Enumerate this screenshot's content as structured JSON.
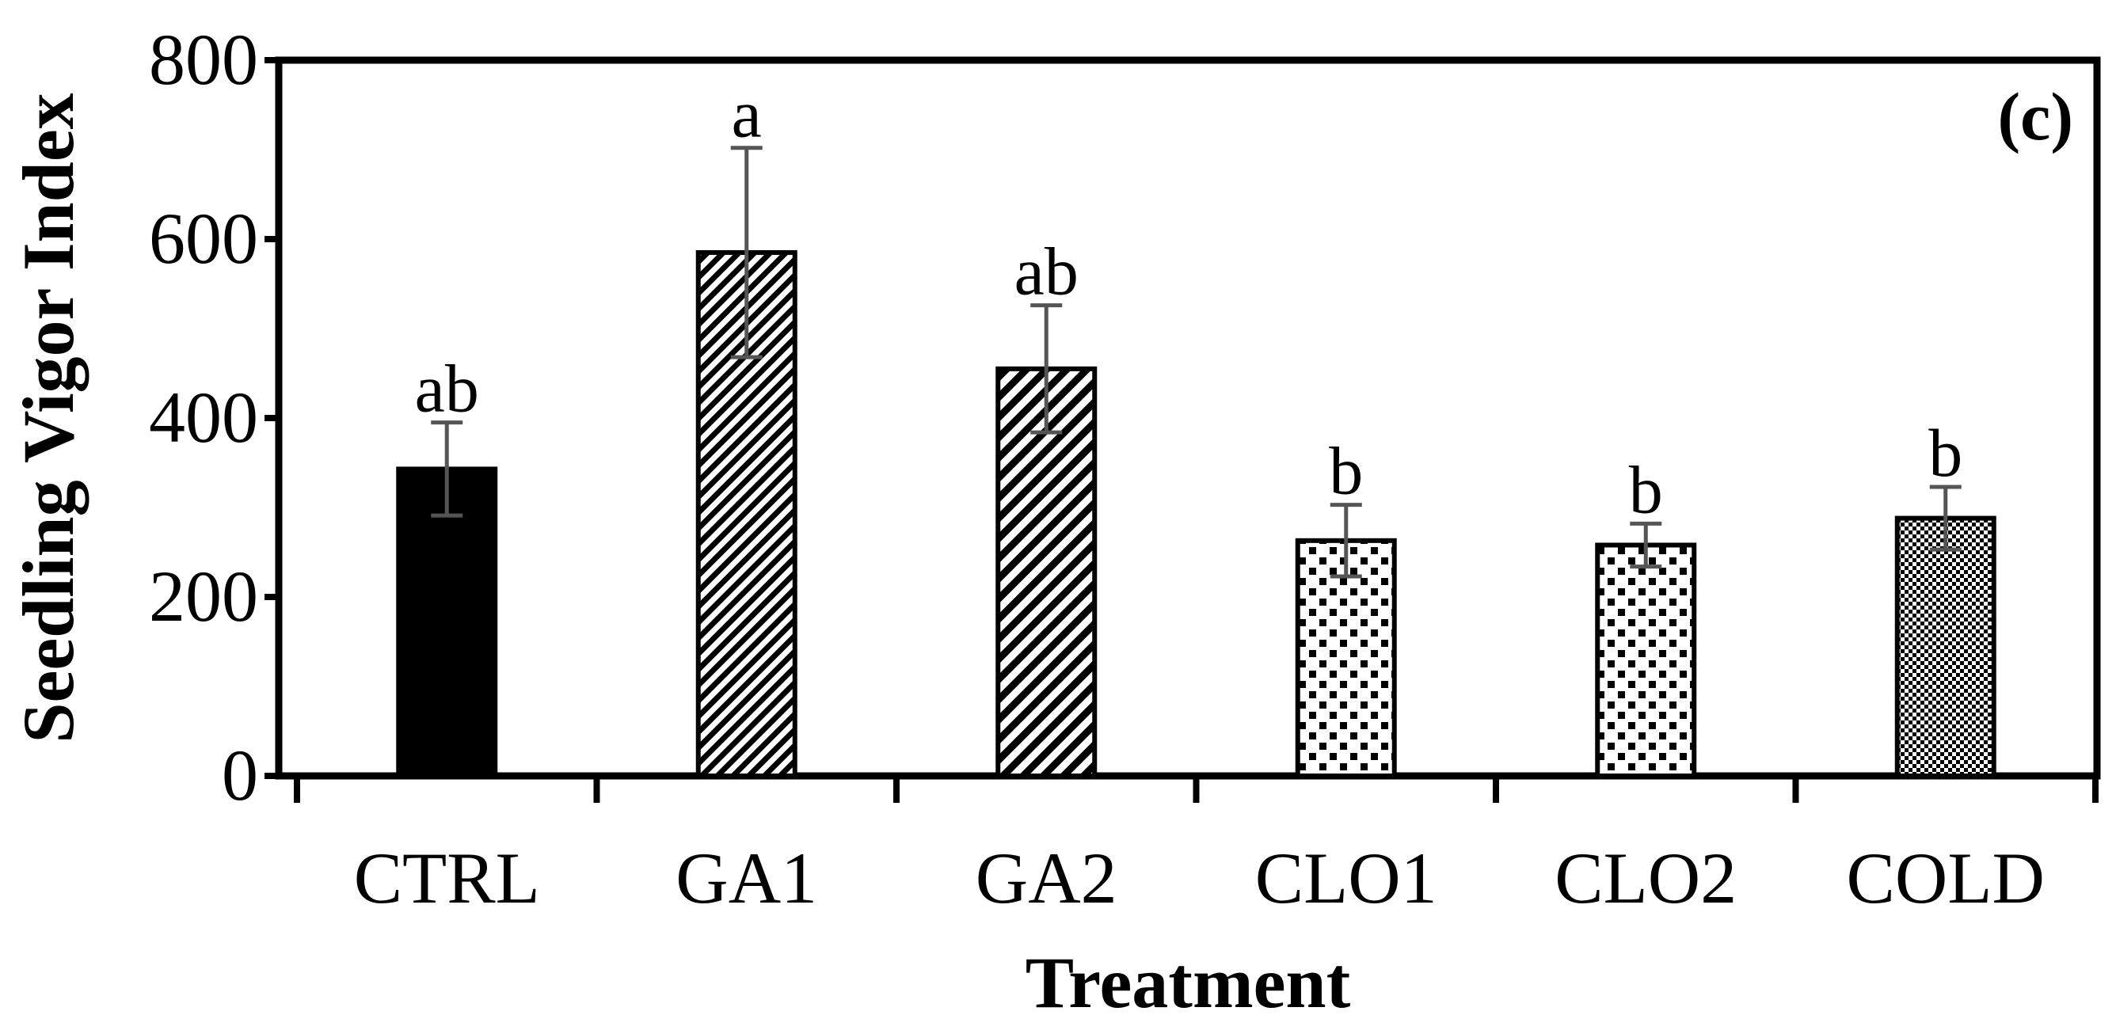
{
  "chart_data": {
    "type": "bar",
    "panel_label": "(c)",
    "xlabel": "Treatment",
    "ylabel": "Seedling Vigor Index",
    "ylim": [
      0,
      800
    ],
    "yticks": [
      0,
      200,
      400,
      600,
      800
    ],
    "ytick_labels": [
      "0",
      "200",
      "400",
      "600",
      "800"
    ],
    "categories": [
      "CTRL",
      "GA1",
      "GA2",
      "CLO1",
      "CLO2",
      "COLD"
    ],
    "values": [
      343,
      585,
      455,
      263,
      258,
      288
    ],
    "errors": [
      52,
      117,
      71,
      40,
      24,
      35
    ],
    "significance": [
      "ab",
      "a",
      "ab",
      "b",
      "b",
      "b"
    ],
    "patterns": [
      "solid",
      "diagonal-fine",
      "diagonal-wide",
      "dots",
      "dots",
      "checker"
    ],
    "grid": false,
    "legend": "none"
  }
}
